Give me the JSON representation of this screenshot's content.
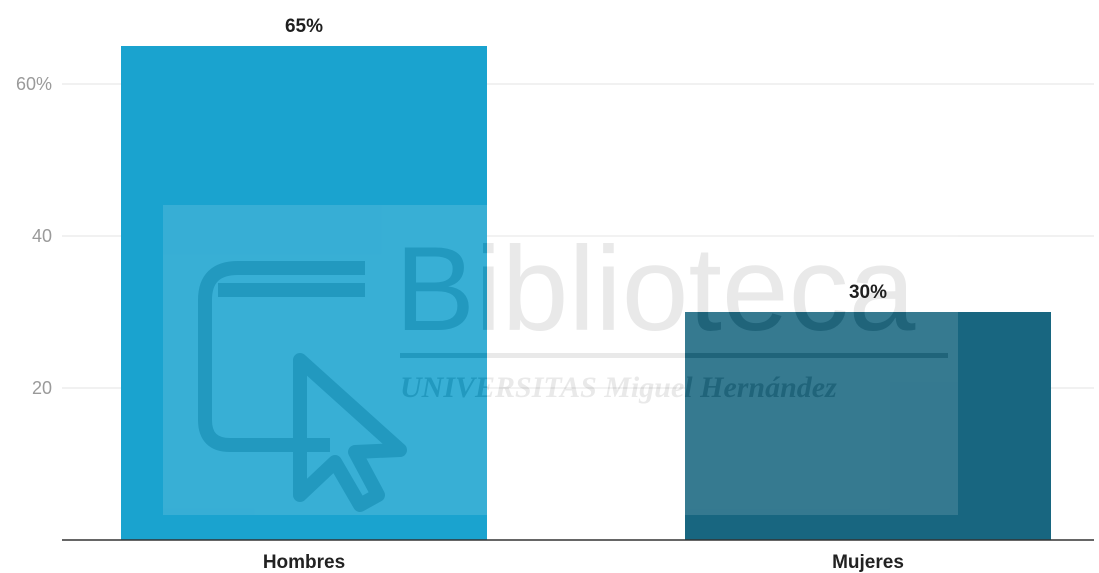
{
  "chart_data": {
    "type": "bar",
    "categories": [
      "Hombres",
      "Mujeres"
    ],
    "values": [
      65,
      30
    ],
    "data_labels": [
      "65%",
      "30%"
    ],
    "yticks": [
      20,
      40,
      60
    ],
    "ytick_labels": [
      "20",
      "40",
      "60%"
    ],
    "ylim": [
      0,
      70
    ],
    "grid": true,
    "colors": [
      "#1aa3cf",
      "#186680"
    ]
  },
  "watermark": {
    "text_main": "Biblioteca",
    "text_sub": "UNIVERSITAS Miguel Hernández"
  }
}
